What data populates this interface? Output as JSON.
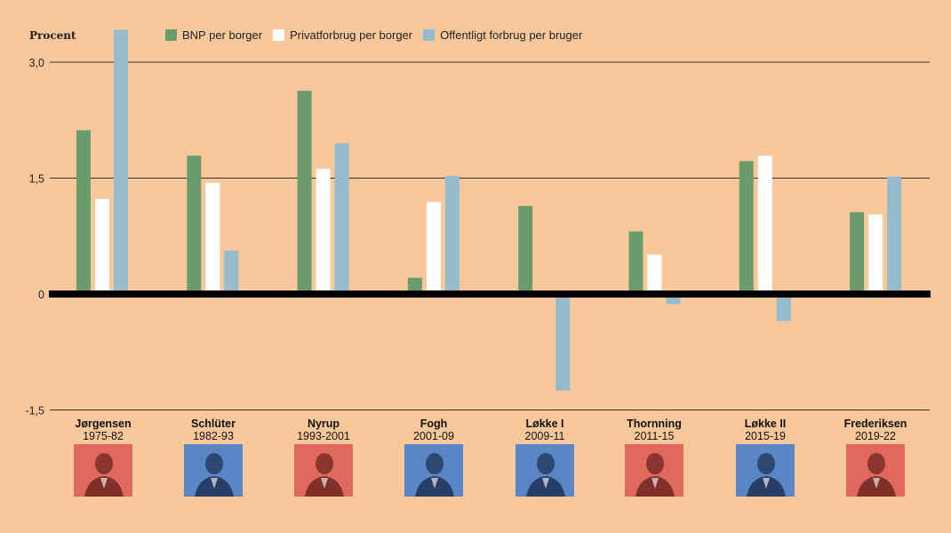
{
  "chart_data": {
    "type": "bar",
    "ylabel": "Procent",
    "ylim": [
      -1.5,
      3.0
    ],
    "yticks": [
      "3,0",
      "1,5",
      "0",
      "-1,5"
    ],
    "ytick_values": [
      3.0,
      1.5,
      0,
      -1.5
    ],
    "grid": true,
    "legend_position": "top",
    "categories": [
      "Jørgensen 1975-82",
      "Schlüter 1982-93",
      "Nyrup 1993-2001",
      "Fogh 2001-09",
      "Løkke I 2009-11",
      "Thornning 2011-15",
      "Løkke II 2015-19",
      "Frederiksen 2019-22"
    ],
    "series": [
      {
        "name": "BNP per borger",
        "color": "#6a9b6c",
        "values": [
          2.12,
          1.79,
          2.63,
          0.21,
          1.14,
          0.81,
          1.72,
          1.06
        ]
      },
      {
        "name": "Privatforbrug per borger",
        "color": "#ffffff",
        "values": [
          1.23,
          1.44,
          1.62,
          1.19,
          0.04,
          0.51,
          1.79,
          1.03
        ]
      },
      {
        "name": "Offentligt forbrug per bruger",
        "color": "#94bccc",
        "values": [
          3.42,
          0.56,
          1.95,
          1.53,
          -1.25,
          -0.13,
          -0.35,
          1.52
        ]
      }
    ]
  },
  "leaders": [
    {
      "name": "Jørgensen",
      "years": "1975-82",
      "photo_color": "red"
    },
    {
      "name": "Schlüter",
      "years": "1982-93",
      "photo_color": "blue"
    },
    {
      "name": "Nyrup",
      "years": "1993-2001",
      "photo_color": "red"
    },
    {
      "name": "Fogh",
      "years": "2001-09",
      "photo_color": "blue"
    },
    {
      "name": "Løkke I",
      "years": "2009-11",
      "photo_color": "blue"
    },
    {
      "name": "Thornning",
      "years": "2011-15",
      "photo_color": "red"
    },
    {
      "name": "Løkke II",
      "years": "2015-19",
      "photo_color": "blue"
    },
    {
      "name": "Frederiksen",
      "years": "2019-22",
      "photo_color": "red"
    }
  ],
  "colors": {
    "background": "#f8c89b",
    "zero_line": "#000000",
    "grid": "#333333",
    "photo_red": "#e0685e",
    "photo_blue": "#5a86c6"
  }
}
